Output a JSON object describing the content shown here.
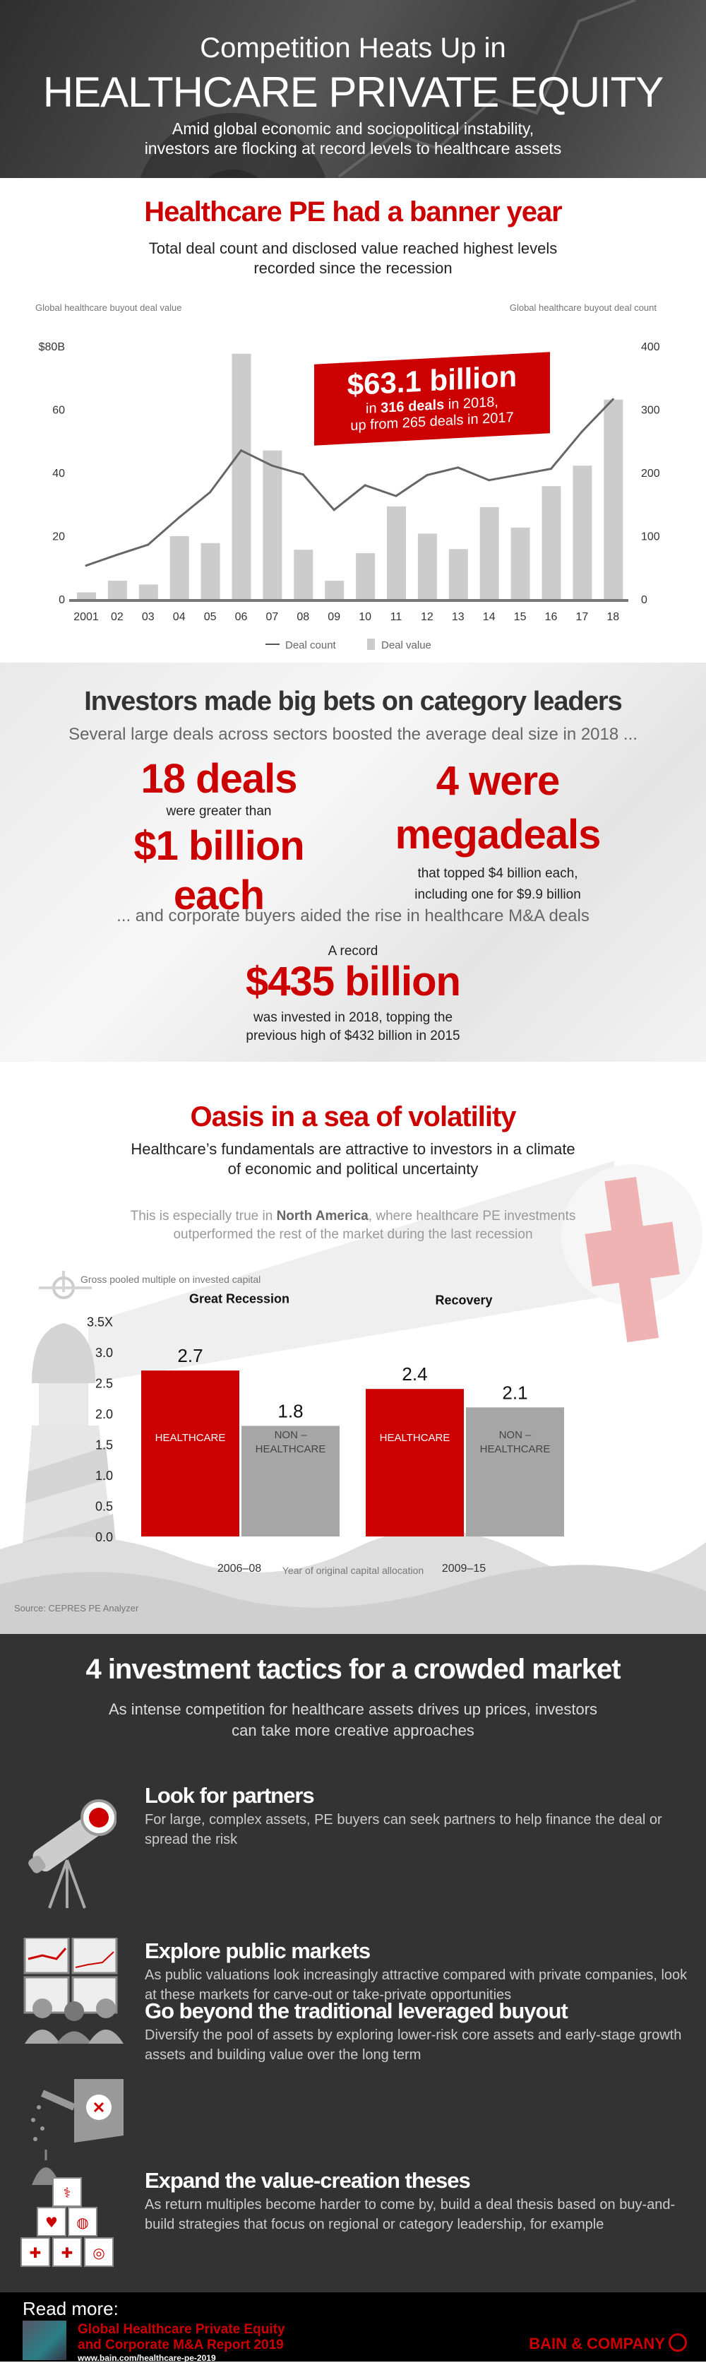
{
  "header": {
    "kicker": "Competition Heats Up in",
    "title": "HEALTHCARE PRIVATE EQUITY",
    "subtitle_1": "Amid global economic and sociopolitical instability,",
    "subtitle_2": "investors are flocking at record levels to healthcare assets"
  },
  "s1": {
    "title": "Healthcare PE had a banner year",
    "subtitle_1": "Total deal count and disclosed value reached highest levels",
    "subtitle_2": "recorded since the recession",
    "callout": {
      "value": "$63.1 billion",
      "line1_pre": "in ",
      "line1_bold": "316 deals",
      "line1_post": " in 2018,",
      "line2": "up from 265 deals in 2017"
    }
  },
  "s2": {
    "title": "Investors made big bets on category leaders",
    "subtitle": "Several large deals across sectors boosted the average deal size in 2018 ...",
    "left": {
      "big1": "18 deals",
      "small": "were greater than",
      "big2": "$1 billion",
      "big3": "each"
    },
    "right": {
      "big1": "4 were",
      "big2": "megadeals",
      "small1": "that topped $4 billion each,",
      "small2": "including one for $9.9 billion"
    },
    "bridge": "... and corporate buyers aided the rise in healthcare M&A deals",
    "record_pre": "A record",
    "record_value": "$435 billion",
    "record_1": "was invested in 2018, topping the",
    "record_2": "previous high of $432 billion in 2015"
  },
  "s3": {
    "title": "Oasis in a sea of volatility",
    "subtitle_1": "Healthcare’s fundamentals are attractive to investors in a climate",
    "subtitle_2": "of economic and political uncertainty",
    "note_pre": "This is especially true in ",
    "note_bold": "North America",
    "note_post": ", where healthcare PE investments",
    "note_2": "outperformed the rest of the market during the last recession",
    "source": "Source: CEPRES PE Analyzer"
  },
  "s4": {
    "title": "4 investment tactics for a crowded market",
    "subtitle_1": "As intense competition for healthcare assets drives up prices, investors",
    "subtitle_2": "can take more creative approaches",
    "tactics": [
      {
        "title": "Look for partners",
        "text": "For large, complex assets, PE buyers can seek partners to help finance the deal or spread the risk",
        "icon": "telescope-icon"
      },
      {
        "title": "Explore public markets",
        "text": "As public valuations look increasingly attractive compared with private companies, look at these markets for carve-out or take-private opportunities",
        "icon": "market-screens-icon"
      },
      {
        "title": "Go beyond the traditional leveraged buyout",
        "text": "Diversify the pool of assets by exploring lower-risk core assets and early-stage growth assets and building value over the long term",
        "icon": "watering-can-icon"
      },
      {
        "title": "Expand the value-creation theses",
        "text": "As return multiples become harder to come by, build a deal thesis based on buy-and-build strategies that focus on regional or category leadership, for example",
        "icon": "medical-blocks-icon"
      }
    ]
  },
  "footer": {
    "read_more": "Read more:",
    "report_1": "Global Healthcare Private Equity",
    "report_2": "and Corporate M&A Report 2019",
    "url": "www.bain.com/healthcare-pe-2019",
    "logo": "BAIN & COMPANY"
  },
  "colors": {
    "accent": "#cc0000",
    "bar_gray": "#cccccc",
    "line_gray": "#666666",
    "dark_bg": "#333333"
  },
  "chart_data": [
    {
      "type": "bar+line",
      "categories": [
        "2001",
        "02",
        "03",
        "04",
        "05",
        "06",
        "07",
        "08",
        "09",
        "10",
        "11",
        "12",
        "13",
        "14",
        "15",
        "16",
        "17",
        "18"
      ],
      "series": [
        {
          "name": "Deal value",
          "type": "bar",
          "axis": "left",
          "values": [
            2.1,
            5.8,
            4.6,
            19.9,
            17.7,
            77.6,
            47,
            15.6,
            5.8,
            14.5,
            29.3,
            20.7,
            15.8,
            29.1,
            22.6,
            35.7,
            42.2,
            63.1
          ]
        },
        {
          "name": "Deal count",
          "type": "line",
          "axis": "right",
          "values": [
            53,
            70,
            86,
            129,
            169,
            235,
            211,
            197,
            141,
            180,
            163,
            196,
            208,
            188,
            197,
            206,
            265,
            316
          ]
        }
      ],
      "ylabel_left": "Global healthcare buyout deal value",
      "ylabel_right": "Global healthcare buyout deal count",
      "yticks_left": [
        "0",
        "20",
        "40",
        "60",
        "$80B"
      ],
      "yticks_right": [
        "0",
        "100",
        "200",
        "300",
        "400"
      ],
      "ylim_left": [
        0,
        80
      ],
      "ylim_right": [
        0,
        400
      ],
      "grid": false,
      "legend": "bottom"
    },
    {
      "type": "bar",
      "ylabel": "Gross pooled multiple on invested capital",
      "xlabel": "Year of original capital allocation",
      "groups": [
        {
          "title": "Great Recession",
          "period": "2006–08"
        },
        {
          "title": "Recovery",
          "period": "2009–15"
        }
      ],
      "series": [
        {
          "name": "HEALTHCARE",
          "values": [
            2.7,
            2.4
          ],
          "color": "#cc0000"
        },
        {
          "name": "NON – HEALTHCARE",
          "values": [
            1.8,
            2.1
          ],
          "color": "#a6a6a6"
        }
      ],
      "yticks": [
        "0.0",
        "0.5",
        "1.0",
        "1.5",
        "2.0",
        "2.5",
        "3.0",
        "3.5X"
      ],
      "ylim": [
        0,
        3.5
      ],
      "grid": false
    }
  ]
}
